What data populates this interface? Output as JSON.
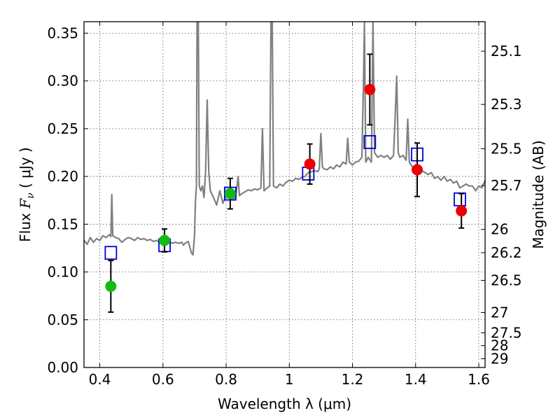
{
  "chart_data": {
    "type": "scatter",
    "xlabel": "Wavelength  λ (μm)",
    "ylabel": "Flux  F_ν  ( μJy )",
    "ylabel_parts": {
      "prefix": "Flux  ",
      "symbol": "F",
      "sub": "ν",
      "unit": "  ( μJy )"
    },
    "ylabel_right": "Magnitude (AB)",
    "xlim": [
      0.35,
      1.62
    ],
    "ylim": [
      0.0,
      0.362
    ],
    "grid": true,
    "x_ticks": [
      0.4,
      0.6,
      0.8,
      1.0,
      1.2,
      1.4,
      1.6
    ],
    "x_tick_labels": [
      "0.4",
      "0.6",
      "0.8",
      "1",
      "1.2",
      "1.4",
      "1.6"
    ],
    "y_ticks": [
      0.0,
      0.05,
      0.1,
      0.15,
      0.2,
      0.25,
      0.3,
      0.35
    ],
    "y_tick_labels": [
      "0.00",
      "0.05",
      "0.10",
      "0.15",
      "0.20",
      "0.25",
      "0.30",
      "0.35"
    ],
    "mag_ticks": [
      {
        "mag": 25.1,
        "label": "25.1"
      },
      {
        "mag": 25.3,
        "label": "25.3"
      },
      {
        "mag": 25.5,
        "label": "25.5"
      },
      {
        "mag": 25.7,
        "label": "25.7"
      },
      {
        "mag": 26.0,
        "label": "26"
      },
      {
        "mag": 26.2,
        "label": "26.2"
      },
      {
        "mag": 26.5,
        "label": "26.5"
      },
      {
        "mag": 27.0,
        "label": "27"
      },
      {
        "mag": 27.5,
        "label": "27.5"
      },
      {
        "mag": 28.0,
        "label": "28"
      },
      {
        "mag": 29.0,
        "label": "29"
      }
    ],
    "series": [
      {
        "kind": "model_spectrum",
        "color": "#808080",
        "points": [
          [
            0.35,
            0.133
          ],
          [
            0.36,
            0.129
          ],
          [
            0.37,
            0.136
          ],
          [
            0.38,
            0.131
          ],
          [
            0.39,
            0.135
          ],
          [
            0.4,
            0.133
          ],
          [
            0.41,
            0.138
          ],
          [
            0.42,
            0.136
          ],
          [
            0.43,
            0.139
          ],
          [
            0.435,
            0.137
          ],
          [
            0.438,
            0.181
          ],
          [
            0.441,
            0.138
          ],
          [
            0.45,
            0.136
          ],
          [
            0.46,
            0.135
          ],
          [
            0.47,
            0.131
          ],
          [
            0.48,
            0.134
          ],
          [
            0.49,
            0.136
          ],
          [
            0.5,
            0.135
          ],
          [
            0.51,
            0.133
          ],
          [
            0.52,
            0.136
          ],
          [
            0.53,
            0.134
          ],
          [
            0.54,
            0.135
          ],
          [
            0.55,
            0.133
          ],
          [
            0.56,
            0.134
          ],
          [
            0.57,
            0.132
          ],
          [
            0.58,
            0.133
          ],
          [
            0.59,
            0.131
          ],
          [
            0.6,
            0.133
          ],
          [
            0.61,
            0.131
          ],
          [
            0.62,
            0.132
          ],
          [
            0.63,
            0.13
          ],
          [
            0.64,
            0.131
          ],
          [
            0.65,
            0.13
          ],
          [
            0.66,
            0.131
          ],
          [
            0.665,
            0.128
          ],
          [
            0.67,
            0.13
          ],
          [
            0.68,
            0.132
          ],
          [
            0.69,
            0.12
          ],
          [
            0.695,
            0.118
          ],
          [
            0.7,
            0.138
          ],
          [
            0.703,
            0.175
          ],
          [
            0.706,
            0.19
          ],
          [
            0.708,
            0.362
          ],
          [
            0.712,
            0.362
          ],
          [
            0.715,
            0.19
          ],
          [
            0.72,
            0.185
          ],
          [
            0.725,
            0.19
          ],
          [
            0.73,
            0.178
          ],
          [
            0.735,
            0.205
          ],
          [
            0.74,
            0.28
          ],
          [
            0.745,
            0.205
          ],
          [
            0.75,
            0.185
          ],
          [
            0.76,
            0.178
          ],
          [
            0.77,
            0.17
          ],
          [
            0.78,
            0.185
          ],
          [
            0.79,
            0.172
          ],
          [
            0.8,
            0.18
          ],
          [
            0.81,
            0.178
          ],
          [
            0.82,
            0.176
          ],
          [
            0.83,
            0.178
          ],
          [
            0.838,
            0.2
          ],
          [
            0.842,
            0.18
          ],
          [
            0.85,
            0.182
          ],
          [
            0.86,
            0.184
          ],
          [
            0.87,
            0.186
          ],
          [
            0.88,
            0.185
          ],
          [
            0.89,
            0.187
          ],
          [
            0.9,
            0.186
          ],
          [
            0.91,
            0.188
          ],
          [
            0.915,
            0.25
          ],
          [
            0.92,
            0.185
          ],
          [
            0.93,
            0.188
          ],
          [
            0.938,
            0.19
          ],
          [
            0.942,
            0.362
          ],
          [
            0.946,
            0.362
          ],
          [
            0.95,
            0.19
          ],
          [
            0.96,
            0.188
          ],
          [
            0.97,
            0.192
          ],
          [
            0.98,
            0.19
          ],
          [
            0.99,
            0.194
          ],
          [
            1.0,
            0.196
          ],
          [
            1.01,
            0.195
          ],
          [
            1.02,
            0.198
          ],
          [
            1.03,
            0.197
          ],
          [
            1.04,
            0.199
          ],
          [
            1.05,
            0.2
          ],
          [
            1.06,
            0.204
          ],
          [
            1.07,
            0.205
          ],
          [
            1.08,
            0.206
          ],
          [
            1.09,
            0.205
          ],
          [
            1.095,
            0.208
          ],
          [
            1.1,
            0.245
          ],
          [
            1.105,
            0.21
          ],
          [
            1.11,
            0.208
          ],
          [
            1.12,
            0.207
          ],
          [
            1.13,
            0.21
          ],
          [
            1.14,
            0.208
          ],
          [
            1.15,
            0.212
          ],
          [
            1.16,
            0.21
          ],
          [
            1.17,
            0.215
          ],
          [
            1.18,
            0.213
          ],
          [
            1.185,
            0.24
          ],
          [
            1.19,
            0.215
          ],
          [
            1.2,
            0.212
          ],
          [
            1.21,
            0.215
          ],
          [
            1.22,
            0.216
          ],
          [
            1.23,
            0.22
          ],
          [
            1.235,
            0.3
          ],
          [
            1.238,
            0.362
          ],
          [
            1.242,
            0.215
          ],
          [
            1.25,
            0.22
          ],
          [
            1.26,
            0.215
          ],
          [
            1.265,
            0.362
          ],
          [
            1.27,
            0.225
          ],
          [
            1.28,
            0.22
          ],
          [
            1.29,
            0.222
          ],
          [
            1.3,
            0.22
          ],
          [
            1.31,
            0.222
          ],
          [
            1.32,
            0.218
          ],
          [
            1.33,
            0.222
          ],
          [
            1.335,
            0.26
          ],
          [
            1.34,
            0.305
          ],
          [
            1.345,
            0.225
          ],
          [
            1.35,
            0.22
          ],
          [
            1.36,
            0.222
          ],
          [
            1.37,
            0.217
          ],
          [
            1.375,
            0.26
          ],
          [
            1.38,
            0.215
          ],
          [
            1.39,
            0.21
          ],
          [
            1.4,
            0.208
          ],
          [
            1.41,
            0.205
          ],
          [
            1.42,
            0.206
          ],
          [
            1.43,
            0.204
          ],
          [
            1.44,
            0.202
          ],
          [
            1.45,
            0.204
          ],
          [
            1.46,
            0.198
          ],
          [
            1.47,
            0.2
          ],
          [
            1.48,
            0.196
          ],
          [
            1.49,
            0.2
          ],
          [
            1.5,
            0.195
          ],
          [
            1.51,
            0.197
          ],
          [
            1.52,
            0.193
          ],
          [
            1.53,
            0.195
          ],
          [
            1.54,
            0.188
          ],
          [
            1.55,
            0.19
          ],
          [
            1.56,
            0.192
          ],
          [
            1.57,
            0.19
          ],
          [
            1.58,
            0.19
          ],
          [
            1.59,
            0.185
          ],
          [
            1.6,
            0.19
          ],
          [
            1.61,
            0.188
          ],
          [
            1.62,
            0.196
          ]
        ]
      },
      {
        "kind": "model_photometry",
        "marker": "open_square",
        "color": "#0000dd",
        "points": [
          {
            "x": 0.435,
            "y": 0.12
          },
          {
            "x": 0.605,
            "y": 0.128
          },
          {
            "x": 0.813,
            "y": 0.182
          },
          {
            "x": 1.06,
            "y": 0.203
          },
          {
            "x": 1.255,
            "y": 0.236
          },
          {
            "x": 1.405,
            "y": 0.223
          },
          {
            "x": 1.54,
            "y": 0.176
          }
        ]
      },
      {
        "kind": "observed_optical",
        "marker": "filled_circle",
        "color": "#11bb11",
        "points": [
          {
            "x": 0.435,
            "y": 0.085,
            "err": 0.027
          },
          {
            "x": 0.605,
            "y": 0.133,
            "err": 0.012
          },
          {
            "x": 0.813,
            "y": 0.182,
            "err": 0.016
          }
        ]
      },
      {
        "kind": "observed_nir",
        "marker": "filled_circle",
        "color": "#ee0000",
        "points": [
          {
            "x": 1.065,
            "y": 0.213,
            "err": 0.021
          },
          {
            "x": 1.255,
            "y": 0.291,
            "err": 0.037
          },
          {
            "x": 1.405,
            "y": 0.207,
            "err": 0.028
          },
          {
            "x": 1.545,
            "y": 0.164,
            "err": 0.018
          }
        ]
      }
    ]
  }
}
